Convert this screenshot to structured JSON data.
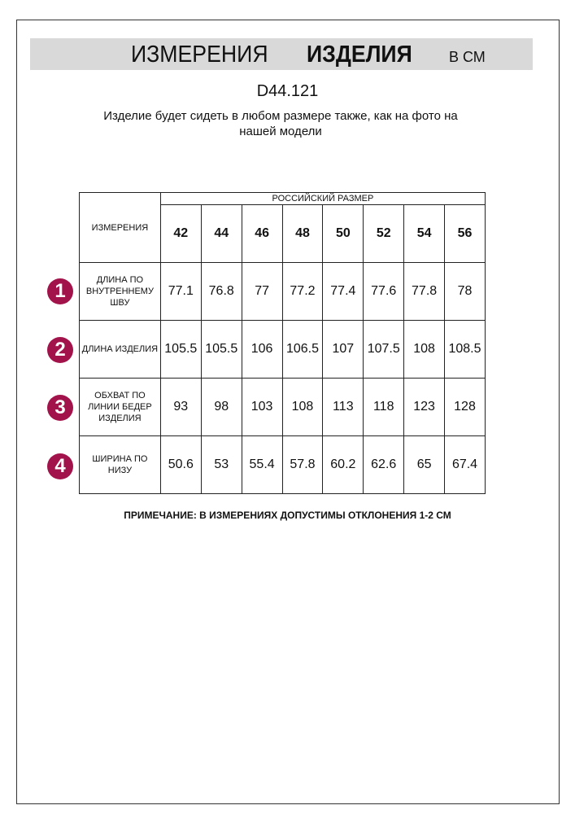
{
  "header": {
    "title_regular": "ИЗМЕРЕНИЯ",
    "title_bold": "ИЗДЕЛИЯ",
    "unit": "В СМ"
  },
  "product_code": "D44.121",
  "subtitle": "Изделие будет сидеть в любом размере также, как на фото на нашей модели",
  "table": {
    "measurements_header": "ИЗМЕРЕНИЯ",
    "size_group_header": "РОССИЙСКИЙ РАЗМЕР",
    "sizes": [
      "42",
      "44",
      "46",
      "48",
      "50",
      "52",
      "54",
      "56"
    ],
    "rows": [
      {
        "number": "1",
        "label": "ДЛИНА ПО ВНУТРЕННЕМУ ШВУ",
        "values": [
          "77.1",
          "76.8",
          "77",
          "77.2",
          "77.4",
          "77.6",
          "77.8",
          "78"
        ]
      },
      {
        "number": "2",
        "label": "ДЛИНА ИЗДЕЛИЯ",
        "values": [
          "105.5",
          "105.5",
          "106",
          "106.5",
          "107",
          "107.5",
          "108",
          "108.5"
        ]
      },
      {
        "number": "3",
        "label": "ОБХВАТ ПО ЛИНИИ БЕДЕР ИЗДЕЛИЯ",
        "values": [
          "93",
          "98",
          "103",
          "108",
          "113",
          "118",
          "123",
          "128"
        ]
      },
      {
        "number": "4",
        "label": "ШИРИНА ПО НИЗУ",
        "values": [
          "50.6",
          "53",
          "55.4",
          "57.8",
          "60.2",
          "62.6",
          "65",
          "67.4"
        ]
      }
    ]
  },
  "note": "ПРИМЕЧАНИЕ: В ИЗМЕРЕНИЯХ ДОПУСТИМЫ ОТКЛОНЕНИЯ 1-2 СМ",
  "colors": {
    "badge": "#a3134b",
    "header_bar": "#d9d9d9"
  }
}
